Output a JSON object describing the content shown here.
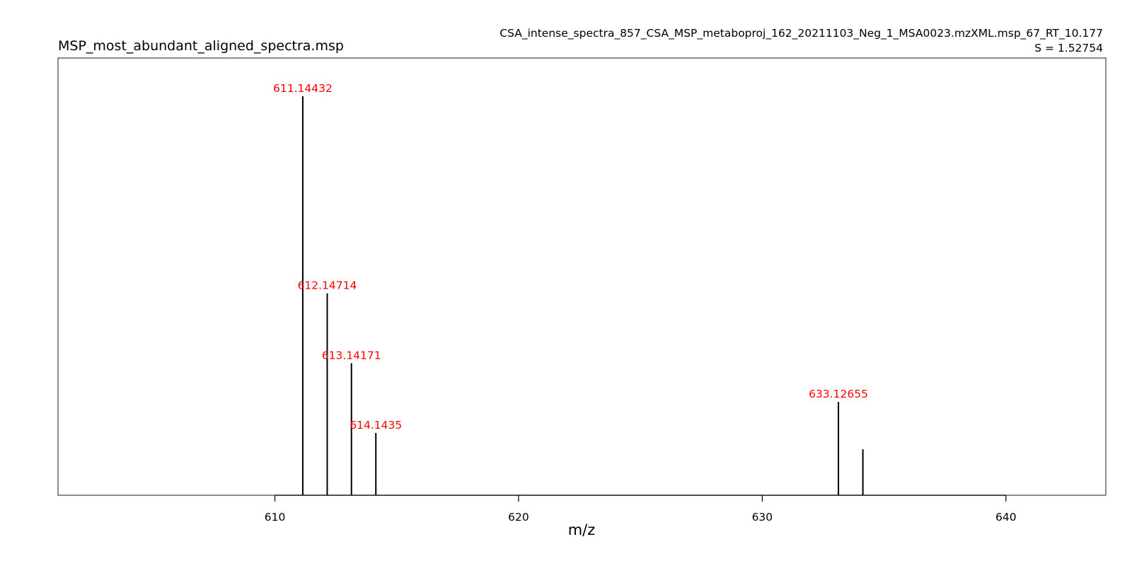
{
  "chart_data": {
    "type": "bar",
    "title": "MSP_most_abundant_aligned_spectra.msp",
    "subtitle": "CSA_intense_spectra_857_CSA_MSP_metaboproj_162_20211103_Neg_1_MSA0023.mzXML.msp_67_RT_10.177",
    "score_label": "S = 1.52754",
    "xlabel": "m/z",
    "ylabel": "",
    "xlim": [
      601.1,
      644.1
    ],
    "ylim": [
      0,
      100
    ],
    "xticks": [
      610,
      620,
      630,
      640
    ],
    "grid": false,
    "peaks": [
      {
        "mz": 611.14432,
        "intensity": 100,
        "label": "611.14432"
      },
      {
        "mz": 612.14714,
        "intensity": 50.6,
        "label": "612.14714"
      },
      {
        "mz": 613.14171,
        "intensity": 33.1,
        "label": "613.14171"
      },
      {
        "mz": 614.1435,
        "intensity": 15.6,
        "label": "614.1435"
      },
      {
        "mz": 633.12655,
        "intensity": 23.4,
        "label": "633.12655"
      },
      {
        "mz": 634.13,
        "intensity": 11.5,
        "label": ""
      }
    ],
    "colors": {
      "peak": "#000000",
      "label": "#ff0000",
      "axis": "#000000"
    }
  }
}
